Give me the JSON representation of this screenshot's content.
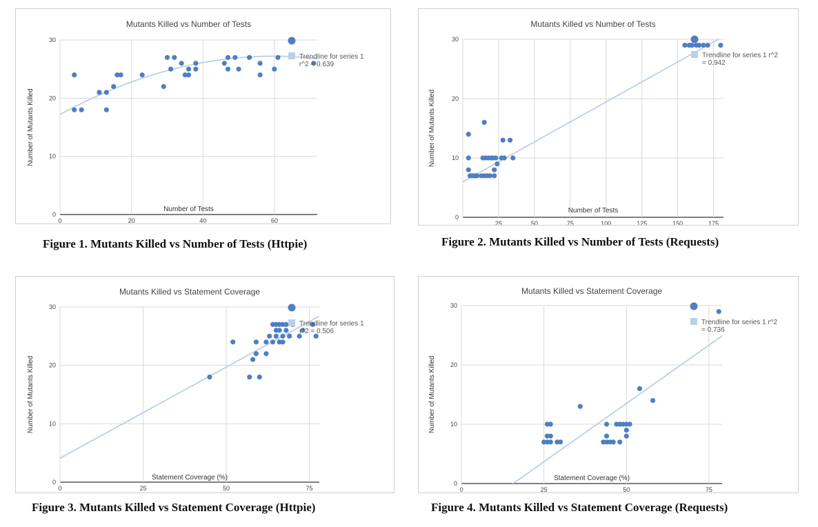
{
  "chart_data": [
    {
      "type": "scatter",
      "title": "Mutants Killed vs Number of Tests",
      "xlabel": "Number of Tests",
      "ylabel": "Number of Mutants Killed",
      "xlim": [
        0,
        72
      ],
      "ylim": [
        0,
        30
      ],
      "xticks": [
        0,
        20,
        40,
        60
      ],
      "yticks": [
        0,
        10,
        20,
        30
      ],
      "grid": true,
      "legend_position": "right",
      "legend": [
        "",
        "Trendline for series 1",
        "r^2 = 0.639"
      ],
      "colors": {
        "points": "#4f7fc1",
        "trendline": "#b9d0e8"
      },
      "trendline": {
        "kind": "polynomial",
        "coefficients": [
          17.2,
          0.335,
          -0.0028
        ]
      },
      "points": [
        {
          "x": 4,
          "y": 24
        },
        {
          "x": 4,
          "y": 18
        },
        {
          "x": 6,
          "y": 18
        },
        {
          "x": 11,
          "y": 21
        },
        {
          "x": 13,
          "y": 21
        },
        {
          "x": 13,
          "y": 18
        },
        {
          "x": 15,
          "y": 22
        },
        {
          "x": 16,
          "y": 24
        },
        {
          "x": 17,
          "y": 24
        },
        {
          "x": 23,
          "y": 24
        },
        {
          "x": 29,
          "y": 22
        },
        {
          "x": 30,
          "y": 27
        },
        {
          "x": 31,
          "y": 25
        },
        {
          "x": 32,
          "y": 27
        },
        {
          "x": 34,
          "y": 26
        },
        {
          "x": 35,
          "y": 24
        },
        {
          "x": 36,
          "y": 25
        },
        {
          "x": 36,
          "y": 24
        },
        {
          "x": 38,
          "y": 26
        },
        {
          "x": 38,
          "y": 25
        },
        {
          "x": 46,
          "y": 26
        },
        {
          "x": 47,
          "y": 27
        },
        {
          "x": 47,
          "y": 25
        },
        {
          "x": 49,
          "y": 27
        },
        {
          "x": 50,
          "y": 25
        },
        {
          "x": 53,
          "y": 27
        },
        {
          "x": 56,
          "y": 26
        },
        {
          "x": 56,
          "y": 24
        },
        {
          "x": 60,
          "y": 25
        },
        {
          "x": 61,
          "y": 27
        },
        {
          "x": 71,
          "y": 26
        }
      ]
    },
    {
      "type": "scatter",
      "title": "Mutants Killed vs Number of Tests",
      "xlabel": "Number of Tests",
      "ylabel": "Number of Mutants Killed",
      "xlim": [
        0,
        182
      ],
      "ylim": [
        0,
        30
      ],
      "xticks": [
        25,
        50,
        75,
        100,
        125,
        150,
        175
      ],
      "yticks": [
        0,
        10,
        20,
        30
      ],
      "grid": true,
      "legend_position": "right",
      "legend": [
        "",
        "Trendline for series 1 r^2",
        "= 0.942"
      ],
      "colors": {
        "points": "#4f7fc1",
        "trendline": "#b9d0e8"
      },
      "trendline": {
        "kind": "linear",
        "coefficients": [
          5.97,
          0.1347
        ]
      },
      "points": [
        {
          "x": 4,
          "y": 14
        },
        {
          "x": 4,
          "y": 10
        },
        {
          "x": 4,
          "y": 8
        },
        {
          "x": 5,
          "y": 7
        },
        {
          "x": 6,
          "y": 7
        },
        {
          "x": 7,
          "y": 7
        },
        {
          "x": 8,
          "y": 7
        },
        {
          "x": 9,
          "y": 7
        },
        {
          "x": 10,
          "y": 7
        },
        {
          "x": 13,
          "y": 7
        },
        {
          "x": 14,
          "y": 10
        },
        {
          "x": 15,
          "y": 16
        },
        {
          "x": 15,
          "y": 7
        },
        {
          "x": 16,
          "y": 10
        },
        {
          "x": 17,
          "y": 7
        },
        {
          "x": 18,
          "y": 10
        },
        {
          "x": 19,
          "y": 7
        },
        {
          "x": 20,
          "y": 10
        },
        {
          "x": 21,
          "y": 10
        },
        {
          "x": 22,
          "y": 8
        },
        {
          "x": 22,
          "y": 7
        },
        {
          "x": 23,
          "y": 10
        },
        {
          "x": 24,
          "y": 9
        },
        {
          "x": 27,
          "y": 10
        },
        {
          "x": 28,
          "y": 13
        },
        {
          "x": 29,
          "y": 10
        },
        {
          "x": 33,
          "y": 13
        },
        {
          "x": 35,
          "y": 10
        },
        {
          "x": 155,
          "y": 29
        },
        {
          "x": 158,
          "y": 29
        },
        {
          "x": 160,
          "y": 29
        },
        {
          "x": 163,
          "y": 29
        },
        {
          "x": 165,
          "y": 29
        },
        {
          "x": 168,
          "y": 29
        },
        {
          "x": 171,
          "y": 29
        },
        {
          "x": 180,
          "y": 29
        }
      ]
    },
    {
      "type": "scatter",
      "title": "Mutants Killed vs Statement Coverage",
      "xlabel": "Statement Coverage (%)",
      "ylabel": "Number of Mutants Killed",
      "xlim": [
        0,
        78
      ],
      "ylim": [
        0,
        30
      ],
      "xticks": [
        0,
        25,
        50,
        75
      ],
      "yticks": [
        0,
        10,
        20,
        30
      ],
      "grid": true,
      "legend_position": "right",
      "legend": [
        "",
        "Trendline for series 1",
        "r^2 = 0.506"
      ],
      "colors": {
        "points": "#4f7fc1",
        "trendline": "#b9d0e8"
      },
      "trendline": {
        "kind": "linear",
        "coefficients": [
          4.1,
          0.312
        ]
      },
      "points": [
        {
          "x": 45,
          "y": 18
        },
        {
          "x": 52,
          "y": 24
        },
        {
          "x": 57,
          "y": 18
        },
        {
          "x": 58,
          "y": 21
        },
        {
          "x": 59,
          "y": 22
        },
        {
          "x": 59,
          "y": 24
        },
        {
          "x": 60,
          "y": 18
        },
        {
          "x": 62,
          "y": 22
        },
        {
          "x": 62,
          "y": 24
        },
        {
          "x": 63,
          "y": 25
        },
        {
          "x": 64,
          "y": 27
        },
        {
          "x": 64,
          "y": 24
        },
        {
          "x": 65,
          "y": 26
        },
        {
          "x": 65,
          "y": 25
        },
        {
          "x": 65,
          "y": 27
        },
        {
          "x": 66,
          "y": 24
        },
        {
          "x": 66,
          "y": 26
        },
        {
          "x": 66,
          "y": 27
        },
        {
          "x": 67,
          "y": 25
        },
        {
          "x": 67,
          "y": 27
        },
        {
          "x": 67,
          "y": 24
        },
        {
          "x": 68,
          "y": 26
        },
        {
          "x": 68,
          "y": 27
        },
        {
          "x": 69,
          "y": 25
        },
        {
          "x": 70,
          "y": 27
        },
        {
          "x": 72,
          "y": 25
        },
        {
          "x": 73,
          "y": 26
        },
        {
          "x": 76,
          "y": 27
        },
        {
          "x": 77,
          "y": 25
        }
      ]
    },
    {
      "type": "scatter",
      "title": "Mutants Killed vs Statement Coverage",
      "xlabel": "Statement Coverage (%)",
      "ylabel": "Number of Mutants Killed",
      "xlim": [
        0,
        79
      ],
      "ylim": [
        0,
        30
      ],
      "xticks": [
        0,
        25,
        50,
        75
      ],
      "yticks": [
        0,
        10,
        20,
        30
      ],
      "grid": true,
      "legend_position": "right",
      "legend": [
        "",
        "Trendline for series 1 r^2",
        "= 0.736"
      ],
      "colors": {
        "points": "#4f7fc1",
        "trendline": "#b9d0e8"
      },
      "trendline": {
        "kind": "linear",
        "coefficients": [
          -6.15,
          0.393
        ]
      },
      "points": [
        {
          "x": 25,
          "y": 7
        },
        {
          "x": 26,
          "y": 10
        },
        {
          "x": 26,
          "y": 7
        },
        {
          "x": 26,
          "y": 8
        },
        {
          "x": 27,
          "y": 10
        },
        {
          "x": 27,
          "y": 8
        },
        {
          "x": 27,
          "y": 7
        },
        {
          "x": 29,
          "y": 7
        },
        {
          "x": 30,
          "y": 7
        },
        {
          "x": 36,
          "y": 13
        },
        {
          "x": 43,
          "y": 7
        },
        {
          "x": 44,
          "y": 7
        },
        {
          "x": 44,
          "y": 10
        },
        {
          "x": 44,
          "y": 8
        },
        {
          "x": 45,
          "y": 7
        },
        {
          "x": 46,
          "y": 7
        },
        {
          "x": 47,
          "y": 10
        },
        {
          "x": 48,
          "y": 10
        },
        {
          "x": 48,
          "y": 7
        },
        {
          "x": 49,
          "y": 10
        },
        {
          "x": 50,
          "y": 10
        },
        {
          "x": 50,
          "y": 9
        },
        {
          "x": 50,
          "y": 8
        },
        {
          "x": 51,
          "y": 10
        },
        {
          "x": 54,
          "y": 16
        },
        {
          "x": 58,
          "y": 14
        },
        {
          "x": 78,
          "y": 29
        }
      ]
    }
  ],
  "captions": [
    "Figure 1. Mutants Killed vs Number of Tests (Httpie)",
    "Figure 2. Mutants Killed vs Number of Tests (Requests)",
    "Figure 3. Mutants Killed vs Statement Coverage (Httpie)",
    "Figure 4. Mutants Killed vs Statement Coverage (Requests)"
  ]
}
